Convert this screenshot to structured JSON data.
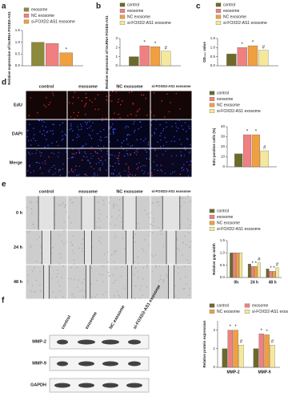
{
  "panel_labels": [
    "a",
    "b",
    "c",
    "d",
    "e",
    "f"
  ],
  "image_panels": {
    "d": {
      "columns": [
        "control",
        "exosome",
        "NC exosome",
        "si-FOXD2-AS1 exosome"
      ],
      "rows": [
        "EdU",
        "DAPI",
        "Merge"
      ]
    },
    "e": {
      "columns": [
        "control",
        "exosome",
        "NC exosome",
        "si-FOXD2-AS1 exosome"
      ],
      "rows": [
        "0 h",
        "24 h",
        "48 h"
      ]
    },
    "f": {
      "columns": [
        "control",
        "exosome",
        "NC exosome",
        "si-FOXD2-AS1 exosome"
      ],
      "rows": [
        "MMP-2",
        "MMP-9",
        "GAPDH"
      ]
    }
  },
  "chart_data": [
    {
      "type": "bar",
      "ylabel": "Relative expression of lncRNA FOXD2-AS1",
      "categories": [
        null
      ],
      "series": [
        {
          "name": "exosome",
          "color": "#8c8a3c",
          "values": [
            1.0
          ],
          "markers": [
            null
          ]
        },
        {
          "name": "NC exosome",
          "color": "#f08080",
          "values": [
            0.95
          ],
          "markers": [
            null
          ]
        },
        {
          "name": "si-FOXD2-AS1 exosome",
          "color": "#f0a040",
          "values": [
            0.55
          ],
          "markers": [
            "*"
          ]
        }
      ],
      "ylim": [
        0,
        1.5
      ],
      "yticks": [
        {
          "value": 0,
          "label": "0.0"
        },
        0.5,
        {
          "value": 1,
          "label": "1.0"
        },
        1.5
      ]
    },
    {
      "type": "bar",
      "ylabel": "Relative expression of lncRNA FOXD2-AS1",
      "categories": [
        null
      ],
      "series": [
        {
          "name": "control",
          "color": "#6b6a2a",
          "values": [
            1.0
          ],
          "markers": [
            null
          ]
        },
        {
          "name": "exosome",
          "color": "#f08080",
          "values": [
            2.2
          ],
          "markers": [
            "*"
          ]
        },
        {
          "name": "NC exosome",
          "color": "#f0a040",
          "values": [
            2.1
          ],
          "markers": [
            "*"
          ]
        },
        {
          "name": "si-FOXD2-AS1 exosome",
          "color": "#f5e89a",
          "values": [
            1.6
          ],
          "markers": [
            "#"
          ]
        }
      ],
      "ylim": [
        0,
        3
      ],
      "yticks": [
        0,
        1,
        2,
        3
      ]
    },
    {
      "type": "bar",
      "ylabel": "OD₄₅₀ value",
      "categories": [
        null
      ],
      "series": [
        {
          "name": "control",
          "color": "#6b6a2a",
          "values": [
            0.65
          ],
          "markers": [
            null
          ]
        },
        {
          "name": "exosome",
          "color": "#f08080",
          "values": [
            1.0
          ],
          "markers": [
            "*"
          ]
        },
        {
          "name": "NC exosome",
          "color": "#f0a040",
          "values": [
            1.1
          ],
          "markers": [
            "*"
          ]
        },
        {
          "name": "si-FOXD2-AS1 exosome",
          "color": "#f5e89a",
          "values": [
            0.85
          ],
          "markers": [
            "#"
          ]
        }
      ],
      "ylim": [
        0,
        1.5
      ],
      "yticks": [
        {
          "value": 0,
          "label": "0.0"
        },
        0.5,
        {
          "value": 1,
          "label": "1.0"
        },
        1.5
      ]
    },
    {
      "type": "bar",
      "ylabel": "EdU positive cells (%)",
      "categories": [
        null
      ],
      "series": [
        {
          "name": "control",
          "color": "#6b6a2a",
          "values": [
            13
          ],
          "markers": [
            null
          ]
        },
        {
          "name": "exosome",
          "color": "#f08080",
          "values": [
            32
          ],
          "markers": [
            "*"
          ]
        },
        {
          "name": "NC exosome",
          "color": "#f0a040",
          "values": [
            32
          ],
          "markers": [
            "*"
          ]
        },
        {
          "name": "si-FOXD2-AS1 exosome",
          "color": "#f5e89a",
          "values": [
            16
          ],
          "markers": [
            "#"
          ]
        }
      ],
      "ylim": [
        0,
        40
      ],
      "yticks": [
        0,
        10,
        20,
        30,
        40
      ]
    },
    {
      "type": "bar",
      "ylabel": "Relative gap width",
      "categories": [
        "0h",
        "24 h",
        "48 h"
      ],
      "series": [
        {
          "name": "control",
          "color": "#6b6a2a",
          "values": [
            1.0,
            0.55,
            0.35
          ],
          "markers": [
            null,
            null,
            null
          ]
        },
        {
          "name": "exosome",
          "color": "#f08080",
          "values": [
            1.0,
            0.45,
            0.25
          ],
          "markers": [
            null,
            "*",
            "*"
          ]
        },
        {
          "name": "NC exosome",
          "color": "#f0a040",
          "values": [
            1.0,
            0.45,
            0.25
          ],
          "markers": [
            null,
            "*",
            "*"
          ]
        },
        {
          "name": "si-FOXD2-AS1 exosome",
          "color": "#f5e89a",
          "values": [
            1.0,
            0.6,
            0.4
          ],
          "markers": [
            null,
            "#",
            "#"
          ]
        }
      ],
      "ylim": [
        0,
        1.5
      ],
      "yticks": [
        {
          "value": 0,
          "label": "0.0"
        },
        0.5,
        {
          "value": 1,
          "label": "1.0"
        },
        1.5
      ]
    },
    {
      "type": "bar",
      "ylabel": "Relative protein expression",
      "categories": [
        "MMP-2",
        "MMP-9"
      ],
      "series": [
        {
          "name": "control",
          "color": "#6b6a2a",
          "values": [
            1.0,
            1.0
          ],
          "markers": [
            null,
            null
          ]
        },
        {
          "name": "exosome",
          "color": "#f08080",
          "values": [
            2.0,
            1.8
          ],
          "markers": [
            "*",
            "*"
          ]
        },
        {
          "name": "NC exosome",
          "color": "#f0a040",
          "values": [
            2.0,
            1.75
          ],
          "markers": [
            "*",
            "*"
          ]
        },
        {
          "name": "si-FOXD2-AS1 exosome",
          "color": "#f5e89a",
          "values": [
            1.2,
            1.2
          ],
          "markers": [
            "#",
            "#"
          ]
        }
      ],
      "ylim": [
        0,
        2.5
      ],
      "yticks": [
        0,
        1,
        2
      ]
    }
  ]
}
